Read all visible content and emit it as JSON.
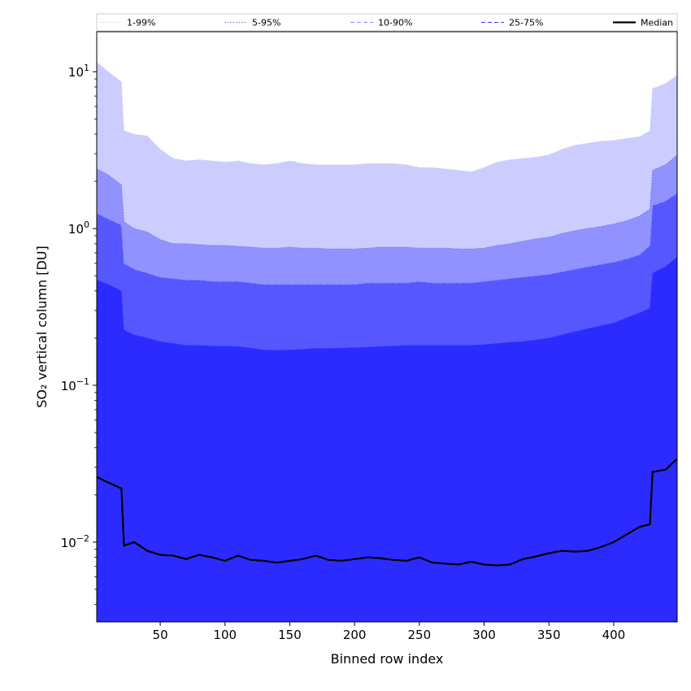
{
  "chart_data": {
    "type": "area",
    "title": "",
    "xlabel": "Binned row index",
    "ylabel": "SO₂ vertical column [DU]",
    "yscale": "log",
    "xlim": [
      1,
      449
    ],
    "ylim": [
      0.0031,
      18
    ],
    "x_ticks": [
      50,
      100,
      150,
      200,
      250,
      300,
      350,
      400
    ],
    "y_ticks": [
      {
        "value": 0.01,
        "base": "10",
        "exp": "−2"
      },
      {
        "value": 0.1,
        "base": "10",
        "exp": "−1"
      },
      {
        "value": 1,
        "base": "10",
        "exp": "0"
      },
      {
        "value": 10,
        "base": "10",
        "exp": "1"
      }
    ],
    "grid": false,
    "legend_position": "top, outside plot, single row",
    "x": [
      1,
      10,
      20,
      22,
      30,
      40,
      50,
      60,
      70,
      80,
      90,
      100,
      110,
      120,
      130,
      140,
      150,
      160,
      170,
      180,
      190,
      200,
      210,
      220,
      230,
      240,
      250,
      260,
      270,
      280,
      290,
      300,
      310,
      320,
      330,
      340,
      350,
      360,
      370,
      380,
      390,
      400,
      410,
      420,
      428,
      430,
      440,
      449
    ],
    "series": [
      {
        "name": "1-99%",
        "fill": "#ccccff",
        "line_color": "#d0d0f5",
        "line_style": "dotted",
        "values": [
          11.5,
          10.0,
          8.6,
          4.2,
          4.0,
          3.9,
          3.2,
          2.8,
          2.7,
          2.75,
          2.7,
          2.65,
          2.7,
          2.6,
          2.55,
          2.6,
          2.7,
          2.6,
          2.55,
          2.55,
          2.55,
          2.55,
          2.6,
          2.6,
          2.6,
          2.55,
          2.45,
          2.45,
          2.4,
          2.35,
          2.3,
          2.45,
          2.65,
          2.75,
          2.8,
          2.85,
          2.95,
          3.2,
          3.4,
          3.5,
          3.6,
          3.65,
          3.75,
          3.85,
          4.2,
          7.8,
          8.4,
          9.5
        ]
      },
      {
        "name": "5-95%",
        "fill": "#9191ff",
        "line_color": "#6a6ae0",
        "line_style": "dotted",
        "values": [
          2.4,
          2.2,
          1.9,
          1.1,
          1.0,
          0.95,
          0.85,
          0.8,
          0.8,
          0.79,
          0.78,
          0.78,
          0.77,
          0.76,
          0.75,
          0.75,
          0.76,
          0.75,
          0.75,
          0.74,
          0.74,
          0.74,
          0.75,
          0.76,
          0.76,
          0.76,
          0.75,
          0.75,
          0.75,
          0.74,
          0.74,
          0.75,
          0.78,
          0.8,
          0.83,
          0.86,
          0.88,
          0.93,
          0.97,
          1.0,
          1.03,
          1.07,
          1.12,
          1.2,
          1.33,
          2.35,
          2.55,
          2.95
        ]
      },
      {
        "name": "10-90%",
        "fill": "#5757ff",
        "line_color": "#8a8aff",
        "line_style": "dashed",
        "values": [
          1.25,
          1.15,
          1.05,
          0.6,
          0.55,
          0.52,
          0.49,
          0.48,
          0.47,
          0.47,
          0.46,
          0.46,
          0.46,
          0.45,
          0.44,
          0.44,
          0.44,
          0.44,
          0.44,
          0.44,
          0.44,
          0.44,
          0.45,
          0.45,
          0.45,
          0.45,
          0.46,
          0.45,
          0.45,
          0.45,
          0.45,
          0.46,
          0.47,
          0.48,
          0.49,
          0.5,
          0.51,
          0.53,
          0.55,
          0.57,
          0.59,
          0.61,
          0.64,
          0.68,
          0.78,
          1.4,
          1.5,
          1.68
        ]
      },
      {
        "name": "25-75%",
        "fill": "#2b2bff",
        "line_color": "#3838ff",
        "line_style": "dashed",
        "values": [
          0.47,
          0.44,
          0.4,
          0.225,
          0.21,
          0.2,
          0.19,
          0.185,
          0.18,
          0.18,
          0.178,
          0.178,
          0.177,
          0.173,
          0.168,
          0.167,
          0.168,
          0.17,
          0.172,
          0.172,
          0.173,
          0.174,
          0.175,
          0.177,
          0.178,
          0.18,
          0.18,
          0.18,
          0.18,
          0.18,
          0.18,
          0.182,
          0.185,
          0.188,
          0.19,
          0.195,
          0.2,
          0.21,
          0.22,
          0.23,
          0.24,
          0.25,
          0.27,
          0.29,
          0.31,
          0.52,
          0.57,
          0.66
        ]
      },
      {
        "name": "Median",
        "fill": "none",
        "line_color": "#000000",
        "line_style": "solid",
        "values": [
          0.026,
          0.024,
          0.022,
          0.0095,
          0.01,
          0.0088,
          0.0083,
          0.0082,
          0.0078,
          0.0083,
          0.008,
          0.0076,
          0.0082,
          0.0077,
          0.0076,
          0.0074,
          0.0076,
          0.0078,
          0.0082,
          0.0077,
          0.0076,
          0.0078,
          0.008,
          0.0079,
          0.0077,
          0.0076,
          0.008,
          0.0074,
          0.0073,
          0.0072,
          0.0075,
          0.0072,
          0.0071,
          0.0072,
          0.0078,
          0.0081,
          0.0085,
          0.0088,
          0.0087,
          0.0088,
          0.0093,
          0.01,
          0.0112,
          0.0125,
          0.013,
          0.028,
          0.029,
          0.034
        ]
      }
    ]
  }
}
